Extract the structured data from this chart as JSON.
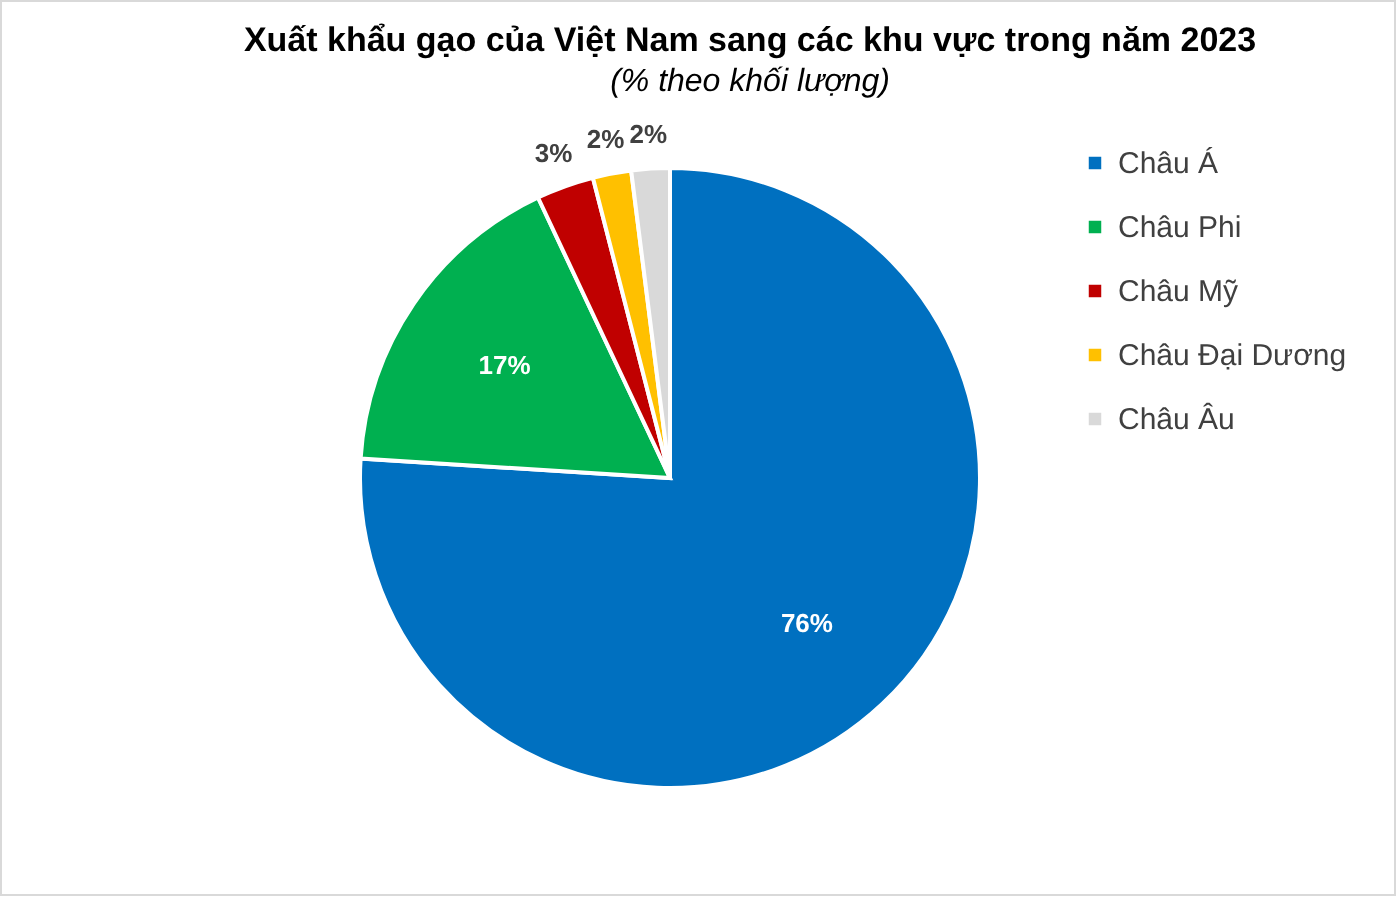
{
  "chart_data": {
    "type": "pie",
    "title": "Xuất khẩu gạo của Việt Nam sang các khu vực trong năm 2023",
    "subtitle": "(% theo khối lượng)",
    "categories": [
      "Châu Á",
      "Châu Phi",
      "Châu Mỹ",
      "Châu Đại Dương",
      "Châu Âu"
    ],
    "values": [
      76,
      17,
      3,
      2,
      2
    ],
    "colors": [
      "#0070c0",
      "#00b050",
      "#c00000",
      "#ffc000",
      "#d9d9d9"
    ],
    "value_labels": [
      "76%",
      "17%",
      "3%",
      "2%",
      "2%"
    ],
    "legend": "right"
  }
}
